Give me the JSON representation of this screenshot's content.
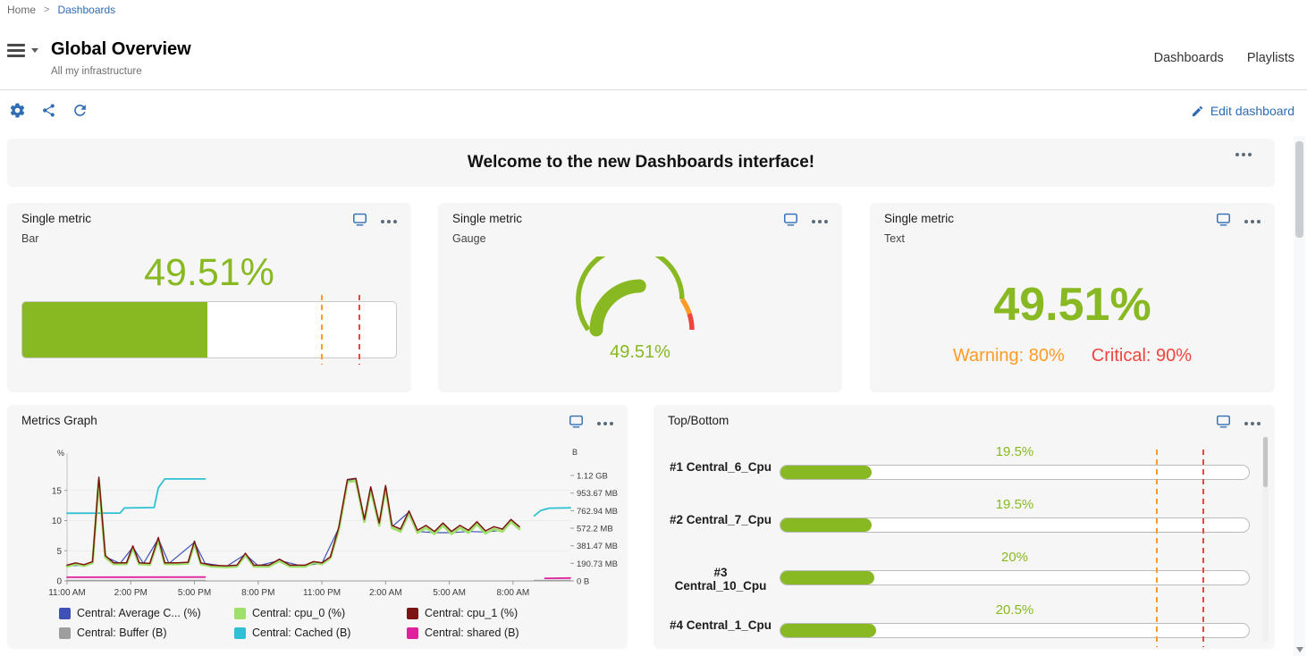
{
  "colors": {
    "accent_blue": "#2f6cb3",
    "green": "#88b922",
    "warning_orange": "#fd9b27",
    "critical_red": "#f0453c",
    "series": {
      "average_cpu": "#3f51b5",
      "cpu_0": "#9fe06a",
      "cpu_1": "#7d1414",
      "buffer": "#9e9e9e",
      "cached": "#2fc1d3",
      "shared": "#e0219e"
    }
  },
  "breadcrumb": {
    "home": "Home",
    "separator": ">",
    "current": "Dashboards"
  },
  "header": {
    "title": "Global Overview",
    "subtitle": "All my infrastructure",
    "nav": {
      "dashboards": "Dashboards",
      "playlists": "Playlists"
    }
  },
  "toolbar": {
    "edit_label": "Edit dashboard"
  },
  "banner": {
    "text": "Welcome to the new Dashboards interface!"
  },
  "single_metric_bar": {
    "title": "Single metric",
    "subtitle": "Bar",
    "value_label": "49.51%",
    "percent": 49.51,
    "warning_percent": 80,
    "critical_percent": 90
  },
  "single_metric_gauge": {
    "title": "Single metric",
    "subtitle": "Gauge",
    "value_label": "49.51%",
    "percent": 49.51,
    "warning_percent": 80,
    "critical_percent": 90
  },
  "single_metric_text": {
    "title": "Single metric",
    "subtitle": "Text",
    "value_label": "49.51%",
    "warning_label": "Warning: 80%",
    "critical_label": "Critical: 90%"
  },
  "top_bottom": {
    "title": "Top/Bottom",
    "warning_percent": 80,
    "critical_percent": 90,
    "rows": [
      {
        "label": "#1 Central_6_Cpu",
        "value_label": "19.5%",
        "percent": 19.5
      },
      {
        "label": "#2 Central_7_Cpu",
        "value_label": "19.5%",
        "percent": 19.5
      },
      {
        "label": "#3 Central_10_Cpu",
        "value_label": "20%",
        "percent": 20
      },
      {
        "label": "#4 Central_1_Cpu",
        "value_label": "20.5%",
        "percent": 20.5
      }
    ]
  },
  "chart_data": {
    "type": "line",
    "title": "Metrics Graph",
    "x_axis": {
      "ticks": [
        "11:00 AM",
        "2:00 PM",
        "5:00 PM",
        "8:00 PM",
        "11:00 PM",
        "2:00 AM",
        "5:00 AM",
        "8:00 AM"
      ],
      "tick_hours": [
        0,
        3,
        6,
        9,
        12,
        15,
        18,
        21
      ],
      "span_hours": 23.7
    },
    "left_axis": {
      "unit": "%",
      "ticks": [
        0,
        5,
        10,
        15
      ],
      "max": 20
    },
    "right_axis": {
      "unit": "B",
      "ticks": [
        {
          "label": "0 B",
          "bytes": 0
        },
        {
          "label": "190.73 MB",
          "bytes": 200000000
        },
        {
          "label": "381.47 MB",
          "bytes": 400000000
        },
        {
          "label": "572.2 MB",
          "bytes": 600000000
        },
        {
          "label": "762.94 MB",
          "bytes": 800000000
        },
        {
          "label": "953.67 MB",
          "bytes": 1000000000
        },
        {
          "label": "1.12 GB",
          "bytes": 1200000000
        }
      ],
      "max_bytes": 1373000000
    },
    "series": [
      {
        "name": "Central: Average C... (%)",
        "color_key": "average_cpu",
        "axis": "left",
        "segments": [
          [
            [
              0,
              2.5
            ],
            [
              0.8,
              2.6
            ],
            [
              1.2,
              3.0
            ],
            [
              1.5,
              16.9
            ],
            [
              1.8,
              4.0
            ],
            [
              2.5,
              2.9
            ],
            [
              3.1,
              5.6
            ],
            [
              3.6,
              2.9
            ],
            [
              4.3,
              7.0
            ],
            [
              4.8,
              2.9
            ],
            [
              6.0,
              6.4
            ],
            [
              6.5,
              2.9
            ],
            [
              7.5,
              2.4
            ],
            [
              8.4,
              4.4
            ],
            [
              9.0,
              2.5
            ],
            [
              10.0,
              3.4
            ],
            [
              11.0,
              2.5
            ],
            [
              12.0,
              2.9
            ],
            [
              12.8,
              8.8
            ],
            [
              13.2,
              16.6
            ],
            [
              13.6,
              16.8
            ],
            [
              14.0,
              10.0
            ],
            [
              14.3,
              15.4
            ],
            [
              14.7,
              9.4
            ],
            [
              15.0,
              15.6
            ],
            [
              15.3,
              9.0
            ],
            [
              16.1,
              11.4
            ],
            [
              16.5,
              8.2
            ],
            [
              17.3,
              8.0
            ],
            [
              18.1,
              8.0
            ],
            [
              18.9,
              8.2
            ],
            [
              19.7,
              8.1
            ],
            [
              20.5,
              8.4
            ],
            [
              20.9,
              10.0
            ],
            [
              21.3,
              8.8
            ]
          ]
        ]
      },
      {
        "name": "Central: cpu_0 (%)",
        "color_key": "cpu_0",
        "axis": "left",
        "segments": [
          [
            [
              0,
              2.4
            ],
            [
              0.4,
              2.8
            ],
            [
              0.8,
              2.5
            ],
            [
              1.2,
              3.0
            ],
            [
              1.5,
              16.7
            ],
            [
              1.8,
              3.9
            ],
            [
              2.2,
              2.8
            ],
            [
              2.8,
              2.8
            ],
            [
              3.1,
              5.4
            ],
            [
              3.4,
              2.8
            ],
            [
              3.9,
              2.7
            ],
            [
              4.3,
              6.8
            ],
            [
              4.6,
              2.8
            ],
            [
              5.2,
              2.8
            ],
            [
              5.7,
              2.9
            ],
            [
              6.0,
              6.2
            ],
            [
              6.3,
              2.8
            ],
            [
              6.8,
              2.4
            ],
            [
              7.5,
              2.3
            ],
            [
              8.0,
              2.4
            ],
            [
              8.4,
              4.3
            ],
            [
              8.8,
              2.4
            ],
            [
              9.5,
              2.4
            ],
            [
              10.0,
              3.3
            ],
            [
              10.5,
              2.4
            ],
            [
              11.2,
              2.4
            ],
            [
              11.6,
              3.0
            ],
            [
              12.0,
              2.8
            ],
            [
              12.4,
              3.8
            ],
            [
              12.8,
              8.6
            ],
            [
              13.2,
              16.4
            ],
            [
              13.6,
              16.6
            ],
            [
              14.0,
              9.8
            ],
            [
              14.3,
              15.2
            ],
            [
              14.7,
              9.2
            ],
            [
              15.0,
              15.4
            ],
            [
              15.3,
              8.8
            ],
            [
              15.7,
              8.2
            ],
            [
              16.1,
              11.2
            ],
            [
              16.5,
              8.0
            ],
            [
              16.9,
              8.8
            ],
            [
              17.3,
              7.8
            ],
            [
              17.7,
              9.2
            ],
            [
              18.1,
              7.8
            ],
            [
              18.5,
              8.8
            ],
            [
              18.9,
              8.0
            ],
            [
              19.3,
              9.4
            ],
            [
              19.7,
              7.9
            ],
            [
              20.1,
              8.6
            ],
            [
              20.5,
              8.2
            ],
            [
              20.9,
              9.8
            ],
            [
              21.3,
              8.6
            ]
          ]
        ]
      },
      {
        "name": "Central: cpu_1 (%)",
        "color_key": "cpu_1",
        "axis": "left",
        "segments": [
          [
            [
              0,
              2.6
            ],
            [
              0.4,
              3.0
            ],
            [
              0.8,
              2.7
            ],
            [
              1.2,
              3.2
            ],
            [
              1.5,
              17.2
            ],
            [
              1.8,
              4.2
            ],
            [
              2.2,
              3.0
            ],
            [
              2.8,
              3.0
            ],
            [
              3.1,
              5.8
            ],
            [
              3.4,
              3.0
            ],
            [
              3.9,
              2.9
            ],
            [
              4.3,
              7.2
            ],
            [
              4.6,
              3.0
            ],
            [
              5.2,
              3.0
            ],
            [
              5.7,
              3.1
            ],
            [
              6.0,
              6.6
            ],
            [
              6.3,
              3.0
            ],
            [
              6.8,
              2.6
            ],
            [
              7.5,
              2.5
            ],
            [
              8.0,
              2.6
            ],
            [
              8.4,
              4.6
            ],
            [
              8.8,
              2.6
            ],
            [
              9.5,
              2.6
            ],
            [
              10.0,
              3.6
            ],
            [
              10.5,
              2.6
            ],
            [
              11.2,
              2.6
            ],
            [
              11.6,
              3.2
            ],
            [
              12.0,
              3.0
            ],
            [
              12.4,
              4.0
            ],
            [
              12.8,
              9.0
            ],
            [
              13.2,
              16.8
            ],
            [
              13.6,
              17.0
            ],
            [
              14.0,
              10.2
            ],
            [
              14.3,
              15.6
            ],
            [
              14.7,
              9.6
            ],
            [
              15.0,
              15.8
            ],
            [
              15.3,
              9.2
            ],
            [
              15.7,
              8.6
            ],
            [
              16.1,
              11.6
            ],
            [
              16.5,
              8.4
            ],
            [
              16.9,
              9.2
            ],
            [
              17.3,
              8.2
            ],
            [
              17.7,
              9.6
            ],
            [
              18.1,
              8.2
            ],
            [
              18.5,
              9.2
            ],
            [
              18.9,
              8.4
            ],
            [
              19.3,
              9.8
            ],
            [
              19.7,
              8.3
            ],
            [
              20.1,
              9.0
            ],
            [
              20.5,
              8.6
            ],
            [
              20.9,
              10.2
            ],
            [
              21.3,
              9.0
            ]
          ]
        ]
      },
      {
        "name": "Central: Buffer (B)",
        "color_key": "buffer",
        "axis": "right",
        "segments": [
          [
            [
              0,
              5000000
            ],
            [
              6.5,
              5000000
            ]
          ],
          [
            [
              22.0,
              5000000
            ],
            [
              23.7,
              5000000
            ]
          ]
        ]
      },
      {
        "name": "Central: Cached (B)",
        "color_key": "cached",
        "axis": "right",
        "segments": [
          [
            [
              0,
              770000000
            ],
            [
              2.5,
              772000000
            ],
            [
              2.7,
              830000000
            ],
            [
              4.1,
              835000000
            ],
            [
              4.3,
              1060000000
            ],
            [
              4.6,
              1160000000
            ],
            [
              6.5,
              1160000000
            ]
          ],
          [
            [
              22.0,
              740000000
            ],
            [
              22.3,
              800000000
            ],
            [
              22.7,
              828000000
            ],
            [
              23.7,
              832000000
            ]
          ]
        ]
      },
      {
        "name": "Central: shared (B)",
        "color_key": "shared",
        "axis": "right",
        "segments": [
          [
            [
              0,
              42000000
            ],
            [
              6.5,
              44000000
            ]
          ],
          [
            [
              22.5,
              30000000
            ],
            [
              23.7,
              33000000
            ]
          ]
        ]
      }
    ]
  }
}
